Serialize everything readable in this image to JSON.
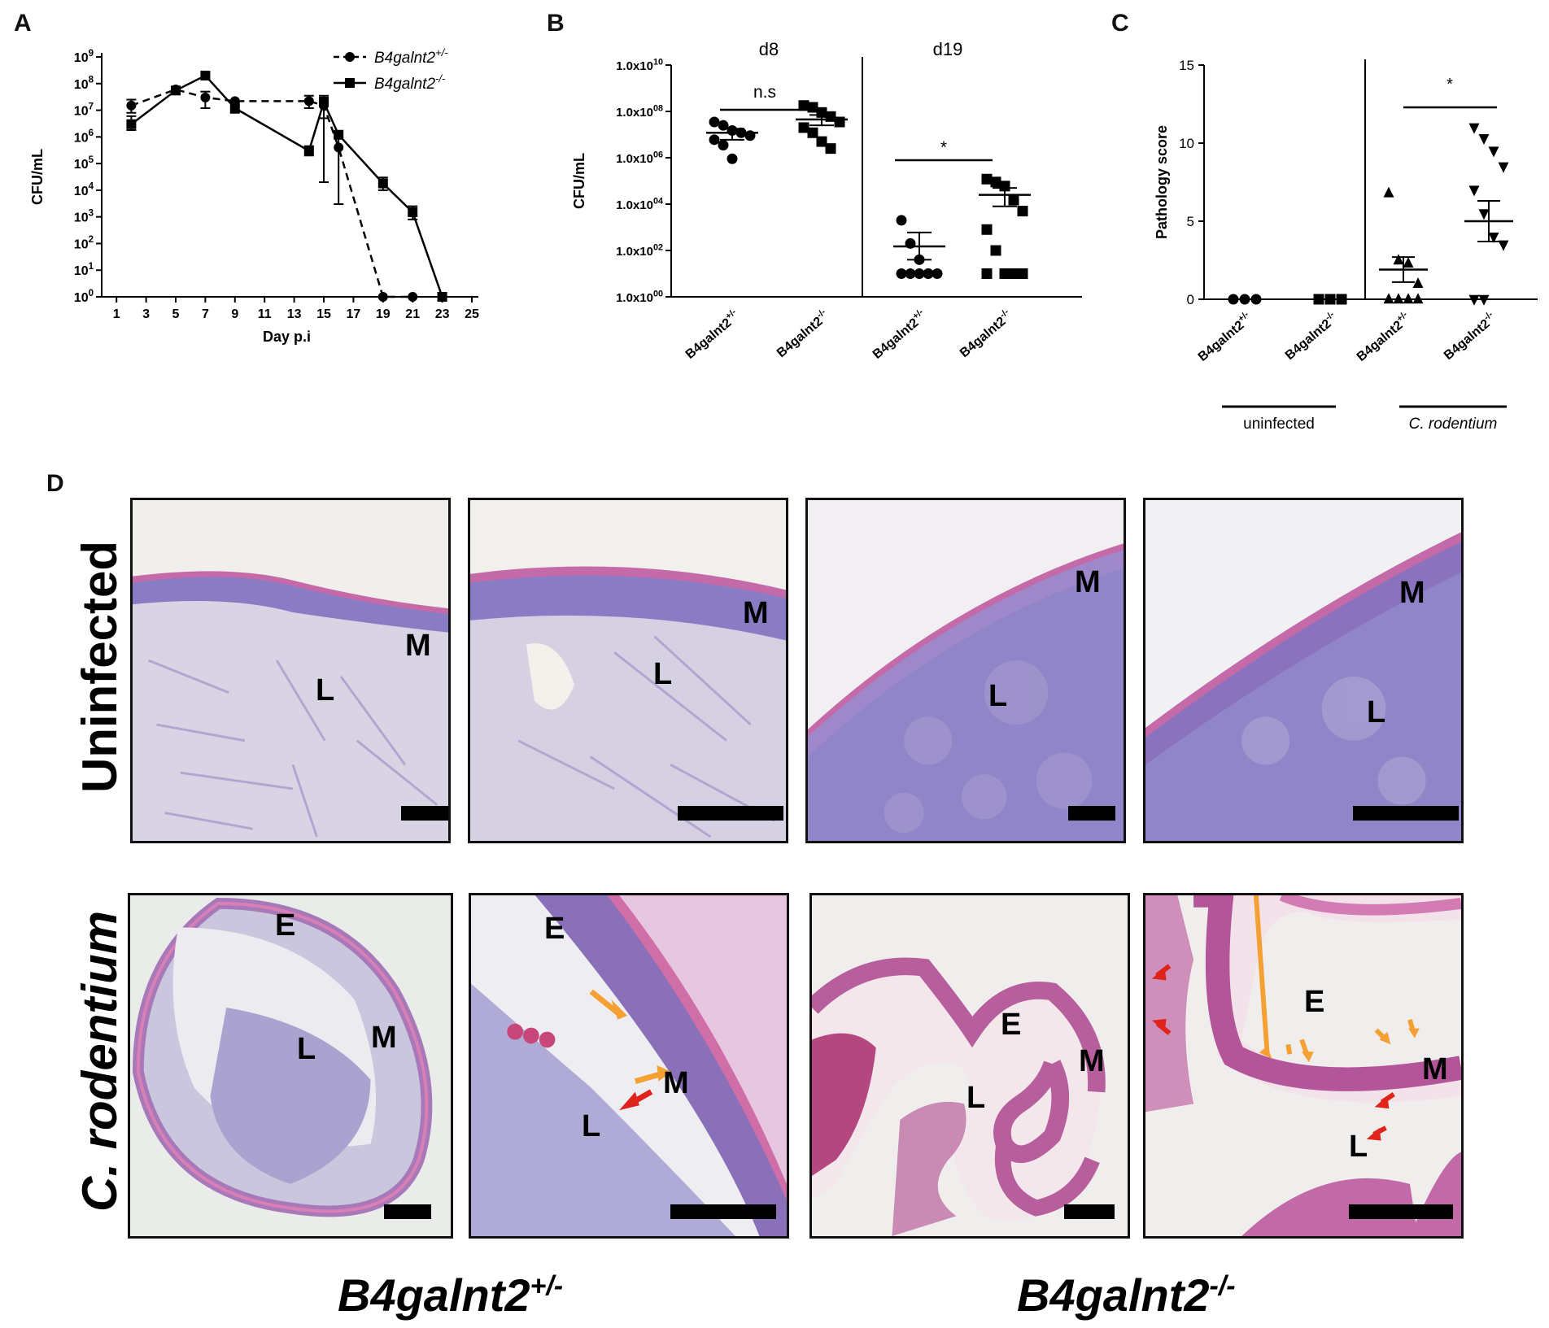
{
  "panels": {
    "a": "A",
    "b": "B",
    "c": "C",
    "d": "D"
  },
  "colors": {
    "purple_tissue": "#8f85c8",
    "pink_mucosa": "#c46aa8",
    "red_arrow": "#e0241b",
    "orange_arrow": "#f5a033",
    "bg_slide": "#f3f1ec"
  },
  "chart_data": [
    {
      "type": "line",
      "panel": "A",
      "xlabel": "Day p.i",
      "ylabel": "CFU/mL",
      "yscale": "log",
      "ylim": [
        1,
        1000000000
      ],
      "xlim": [
        0,
        25
      ],
      "x_ticks": [
        "1",
        "3",
        "5",
        "7",
        "9",
        "11",
        "13",
        "15",
        "17",
        "19",
        "21",
        "23",
        "25"
      ],
      "y_ticks": [
        "10^0",
        "10^1",
        "10^2",
        "10^3",
        "10^4",
        "10^5",
        "10^6",
        "10^7",
        "10^8",
        "10^9"
      ],
      "legend_placement": "top-right",
      "series": [
        {
          "name": "B4galnt2+/-",
          "style": "dashed",
          "marker": "circle",
          "x": [
            2,
            5,
            7,
            9,
            14,
            15,
            16,
            19,
            21
          ],
          "y": [
            15000000,
            60000000,
            30000000,
            22000000,
            22000000,
            15000000,
            400000,
            1,
            1
          ],
          "err": [
            [
              8000000,
              25000000
            ],
            null,
            [
              12000000,
              50000000
            ],
            null,
            [
              12000000,
              35000000
            ],
            [
              20000,
              30000000
            ],
            [
              3000,
              1000000
            ],
            null,
            null
          ]
        },
        {
          "name": "B4galnt2-/-",
          "style": "solid",
          "marker": "square",
          "x": [
            2,
            5,
            7,
            9,
            14,
            15,
            16,
            19,
            21,
            23
          ],
          "y": [
            3000000,
            55000000,
            200000000,
            12000000,
            300000,
            20000000,
            1200000,
            18000,
            1500,
            1
          ],
          "err": [
            [
              1800000,
              6000000
            ],
            null,
            null,
            [
              8000000,
              20000000
            ],
            [
              200000,
              450000
            ],
            [
              5000000,
              35000000
            ],
            null,
            [
              10000,
              30000
            ],
            [
              800,
              2500
            ],
            null
          ]
        }
      ],
      "legend": {
        "het_base": "B4galnt2",
        "het_sup": "+/-",
        "ko_base": "B4galnt2",
        "ko_sup": "-/-"
      }
    },
    {
      "type": "scatter",
      "panel": "B",
      "ylabel": "CFU/mL",
      "yscale": "log",
      "ylim": [
        1,
        10000000000
      ],
      "y_ticks": [
        "1.0x10^00",
        "1.0x10^02",
        "1.0x10^04",
        "1.0x10^06",
        "1.0x10^08",
        "1.0x10^10"
      ],
      "groups": [
        "d8",
        "d19"
      ],
      "annotations": [
        "n.s",
        "*"
      ],
      "categories": [
        "B4galnt2+/-",
        "B4galnt2-/-",
        "B4galnt2+/-",
        "B4galnt2-/-"
      ],
      "series": [
        {
          "group": "d8",
          "category": "B4galnt2+/-",
          "marker": "circle",
          "mean": 12000000,
          "sem": [
            6000000,
            18000000
          ],
          "values": [
            35000000,
            25000000,
            15000000,
            12000000,
            9000000,
            6000000,
            3500000,
            900000
          ]
        },
        {
          "group": "d8",
          "category": "B4galnt2-/-",
          "marker": "square",
          "mean": 45000000,
          "sem": [
            25000000,
            70000000
          ],
          "values": [
            180000000,
            150000000,
            90000000,
            60000000,
            35000000,
            20000000,
            12000000,
            5000000,
            2500000
          ]
        },
        {
          "group": "d19",
          "category": "B4galnt2+/-",
          "marker": "circle",
          "mean": 150,
          "sem": [
            40,
            600
          ],
          "values": [
            2000,
            200,
            40,
            10,
            10,
            10,
            10,
            10,
            10
          ]
        },
        {
          "group": "d19",
          "category": "B4galnt2-/-",
          "marker": "square",
          "mean": 25000,
          "sem": [
            8000,
            50000
          ],
          "values": [
            120000,
            90000,
            60000,
            15000,
            5000,
            800,
            100,
            10,
            10,
            10,
            10
          ]
        }
      ]
    },
    {
      "type": "scatter",
      "panel": "C",
      "ylabel": "Pathology score",
      "ylim": [
        0,
        15
      ],
      "y_ticks": [
        "0",
        "5",
        "10",
        "15"
      ],
      "annotations": [
        "*"
      ],
      "categories": [
        "B4galnt2+/-",
        "B4galnt2-/-",
        "B4galnt2+/-",
        "B4galnt2-/-"
      ],
      "groups": [
        "uninfected",
        "C. rodentium"
      ],
      "series": [
        {
          "group": "uninfected",
          "category": "B4galnt2+/-",
          "marker": "circle",
          "mean": 0,
          "values": [
            0,
            0,
            0
          ]
        },
        {
          "group": "uninfected",
          "category": "B4galnt2-/-",
          "marker": "square",
          "mean": 0,
          "values": [
            0,
            0,
            0
          ]
        },
        {
          "group": "C. rodentium",
          "category": "B4galnt2+/-",
          "marker": "triangle-up",
          "mean": 1.9,
          "sem": [
            1.1,
            2.7
          ],
          "values": [
            6.8,
            2.5,
            2.3,
            1.0,
            0,
            0,
            0,
            0
          ]
        },
        {
          "group": "C. rodentium",
          "category": "B4galnt2-/-",
          "marker": "triangle-down",
          "mean": 5.0,
          "sem": [
            3.7,
            6.3
          ],
          "values": [
            11.0,
            10.3,
            9.5,
            8.5,
            7.0,
            5.5,
            4.0,
            3.5,
            0,
            0
          ]
        }
      ]
    }
  ],
  "panel_d": {
    "row_labels": [
      "Uninfected",
      "C. rodentium"
    ],
    "genotypes": [
      {
        "base": "B4galnt2",
        "sup": "+/-"
      },
      {
        "base": "B4galnt2",
        "sup": "-/-"
      }
    ],
    "tissue_labels": {
      "M": "M",
      "L": "L",
      "E": "E"
    }
  }
}
